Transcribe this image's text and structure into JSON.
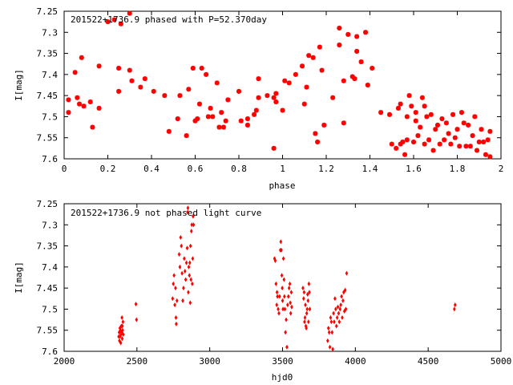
{
  "colors": {
    "series": "#ff0000",
    "axis": "#000000",
    "background": "#ffffff"
  },
  "chart_data": [
    {
      "type": "scatter",
      "title": "201522+1736.9 phased with P=52.370day",
      "xlabel": "phase",
      "ylabel": "I[mag]",
      "xlim": [
        0,
        2
      ],
      "ylim": [
        7.6,
        7.25
      ],
      "y_inverted": true,
      "grid": false,
      "marker": "star",
      "xticks": [
        0,
        0.2,
        0.4,
        0.6,
        0.8,
        1,
        1.2,
        1.4,
        1.6,
        1.8,
        2
      ],
      "xtick_labels": [
        "0",
        "0.2",
        "0.4",
        "0.6",
        "0.8",
        "1",
        "1.2",
        "1.4",
        "1.6",
        "1.8",
        "2"
      ],
      "yticks": [
        7.25,
        7.3,
        7.35,
        7.4,
        7.45,
        7.5,
        7.55,
        7.6
      ],
      "ytick_labels": [
        "7.25",
        "7.3",
        "7.35",
        "7.4",
        "7.45",
        "7.5",
        "7.55",
        "7.6"
      ],
      "points": [
        [
          0.02,
          7.46
        ],
        [
          0.02,
          7.49
        ],
        [
          0.05,
          7.395
        ],
        [
          0.06,
          7.455
        ],
        [
          0.07,
          7.47
        ],
        [
          0.08,
          7.36
        ],
        [
          0.09,
          7.475
        ],
        [
          0.12,
          7.465
        ],
        [
          0.13,
          7.525
        ],
        [
          0.16,
          7.38
        ],
        [
          0.16,
          7.48
        ],
        [
          0.2,
          7.275
        ],
        [
          0.23,
          7.27
        ],
        [
          0.25,
          7.385
        ],
        [
          0.25,
          7.44
        ],
        [
          0.26,
          7.28
        ],
        [
          0.3,
          7.255
        ],
        [
          0.3,
          7.39
        ],
        [
          0.31,
          7.415
        ],
        [
          0.35,
          7.43
        ],
        [
          0.37,
          7.41
        ],
        [
          0.41,
          7.44
        ],
        [
          0.46,
          7.45
        ],
        [
          0.48,
          7.535
        ],
        [
          0.52,
          7.505
        ],
        [
          0.53,
          7.45
        ],
        [
          0.56,
          7.545
        ],
        [
          0.57,
          7.435
        ],
        [
          0.59,
          7.385
        ],
        [
          0.6,
          7.51
        ],
        [
          0.61,
          7.505
        ],
        [
          0.62,
          7.47
        ],
        [
          0.63,
          7.385
        ],
        [
          0.65,
          7.4
        ],
        [
          0.66,
          7.5
        ],
        [
          0.67,
          7.48
        ],
        [
          0.68,
          7.5
        ],
        [
          0.7,
          7.42
        ],
        [
          0.71,
          7.525
        ],
        [
          0.72,
          7.49
        ],
        [
          0.73,
          7.525
        ],
        [
          0.74,
          7.51
        ],
        [
          0.75,
          7.46
        ],
        [
          0.8,
          7.44
        ],
        [
          0.81,
          7.51
        ],
        [
          0.84,
          7.505
        ],
        [
          0.84,
          7.52
        ],
        [
          0.87,
          7.495
        ],
        [
          0.88,
          7.485
        ],
        [
          0.89,
          7.41
        ],
        [
          0.89,
          7.455
        ],
        [
          0.93,
          7.45
        ],
        [
          0.96,
          7.455
        ],
        [
          0.96,
          7.575
        ],
        [
          0.97,
          7.445
        ],
        [
          0.97,
          7.465
        ],
        [
          1,
          7.485
        ],
        [
          1.01,
          7.415
        ],
        [
          1.03,
          7.42
        ],
        [
          1.06,
          7.4
        ],
        [
          1.09,
          7.38
        ],
        [
          1.1,
          7.47
        ],
        [
          1.11,
          7.43
        ],
        [
          1.12,
          7.355
        ],
        [
          1.14,
          7.36
        ],
        [
          1.15,
          7.54
        ],
        [
          1.16,
          7.56
        ],
        [
          1.17,
          7.335
        ],
        [
          1.18,
          7.39
        ],
        [
          1.19,
          7.52
        ],
        [
          1.23,
          7.455
        ],
        [
          1.26,
          7.33
        ],
        [
          1.26,
          7.29
        ],
        [
          1.28,
          7.415
        ],
        [
          1.28,
          7.515
        ],
        [
          1.3,
          7.305
        ],
        [
          1.32,
          7.405
        ],
        [
          1.33,
          7.41
        ],
        [
          1.34,
          7.345
        ],
        [
          1.34,
          7.31
        ],
        [
          1.36,
          7.37
        ],
        [
          1.38,
          7.3
        ],
        [
          1.39,
          7.425
        ],
        [
          1.41,
          7.385
        ],
        [
          1.45,
          7.49
        ],
        [
          1.49,
          7.495
        ],
        [
          1.5,
          7.565
        ],
        [
          1.52,
          7.575
        ],
        [
          1.53,
          7.48
        ],
        [
          1.54,
          7.47
        ],
        [
          1.54,
          7.565
        ],
        [
          1.55,
          7.56
        ],
        [
          1.56,
          7.59
        ],
        [
          1.57,
          7.555
        ],
        [
          1.57,
          7.5
        ],
        [
          1.58,
          7.45
        ],
        [
          1.59,
          7.475
        ],
        [
          1.6,
          7.56
        ],
        [
          1.61,
          7.49
        ],
        [
          1.61,
          7.51
        ],
        [
          1.62,
          7.545
        ],
        [
          1.63,
          7.525
        ],
        [
          1.64,
          7.455
        ],
        [
          1.65,
          7.565
        ],
        [
          1.65,
          7.475
        ],
        [
          1.66,
          7.5
        ],
        [
          1.67,
          7.555
        ],
        [
          1.68,
          7.495
        ],
        [
          1.69,
          7.58
        ],
        [
          1.7,
          7.53
        ],
        [
          1.71,
          7.52
        ],
        [
          1.72,
          7.565
        ],
        [
          1.73,
          7.505
        ],
        [
          1.74,
          7.555
        ],
        [
          1.75,
          7.515
        ],
        [
          1.76,
          7.54
        ],
        [
          1.77,
          7.565
        ],
        [
          1.78,
          7.495
        ],
        [
          1.79,
          7.55
        ],
        [
          1.8,
          7.53
        ],
        [
          1.81,
          7.57
        ],
        [
          1.82,
          7.49
        ],
        [
          1.83,
          7.515
        ],
        [
          1.84,
          7.57
        ],
        [
          1.85,
          7.52
        ],
        [
          1.86,
          7.57
        ],
        [
          1.87,
          7.545
        ],
        [
          1.88,
          7.5
        ],
        [
          1.89,
          7.58
        ],
        [
          1.9,
          7.56
        ],
        [
          1.91,
          7.53
        ],
        [
          1.92,
          7.56
        ],
        [
          1.93,
          7.59
        ],
        [
          1.94,
          7.555
        ],
        [
          1.95,
          7.535
        ],
        [
          1.95,
          7.595
        ]
      ]
    },
    {
      "type": "scatter",
      "title": "201522+1736.9 not phased light curve",
      "xlabel": "hjd0",
      "ylabel": "I[mag]",
      "xlim": [
        2000,
        5000
      ],
      "ylim": [
        7.6,
        7.25
      ],
      "y_inverted": true,
      "grid": false,
      "marker": "diamond",
      "xticks": [
        2000,
        2500,
        3000,
        3500,
        4000,
        4500,
        5000
      ],
      "xtick_labels": [
        "2000",
        "2500",
        "3000",
        "3500",
        "4000",
        "4500",
        "5000"
      ],
      "yticks": [
        7.25,
        7.3,
        7.35,
        7.4,
        7.45,
        7.5,
        7.55,
        7.6
      ],
      "ytick_labels": [
        "7.25",
        "7.3",
        "7.35",
        "7.4",
        "7.45",
        "7.5",
        "7.55",
        "7.6"
      ],
      "points": [
        [
          2375,
          7.565
        ],
        [
          2378,
          7.555
        ],
        [
          2380,
          7.575
        ],
        [
          2383,
          7.545
        ],
        [
          2385,
          7.565
        ],
        [
          2387,
          7.55
        ],
        [
          2389,
          7.58
        ],
        [
          2391,
          7.56
        ],
        [
          2393,
          7.54
        ],
        [
          2395,
          7.555
        ],
        [
          2397,
          7.52
        ],
        [
          2399,
          7.57
        ],
        [
          2400,
          7.54
        ],
        [
          2402,
          7.55
        ],
        [
          2404,
          7.53
        ],
        [
          2406,
          7.56
        ],
        [
          2493,
          7.488
        ],
        [
          2497,
          7.525
        ],
        [
          2745,
          7.475
        ],
        [
          2750,
          7.44
        ],
        [
          2755,
          7.42
        ],
        [
          2760,
          7.49
        ],
        [
          2765,
          7.45
        ],
        [
          2768,
          7.52
        ],
        [
          2770,
          7.535
        ],
        [
          2775,
          7.48
        ],
        [
          2790,
          7.37
        ],
        [
          2795,
          7.4
        ],
        [
          2800,
          7.33
        ],
        [
          2805,
          7.35
        ],
        [
          2810,
          7.415
        ],
        [
          2815,
          7.48
        ],
        [
          2820,
          7.45
        ],
        [
          2825,
          7.38
        ],
        [
          2830,
          7.41
        ],
        [
          2835,
          7.43
        ],
        [
          2840,
          7.39
        ],
        [
          2845,
          7.355
        ],
        [
          2848,
          7.27
        ],
        [
          2850,
          7.26
        ],
        [
          2853,
          7.46
        ],
        [
          2856,
          7.4
        ],
        [
          2860,
          7.42
        ],
        [
          2863,
          7.39
        ],
        [
          2866,
          7.485
        ],
        [
          2868,
          7.35
        ],
        [
          2871,
          7.43
        ],
        [
          2874,
          7.315
        ],
        [
          2877,
          7.3
        ],
        [
          2880,
          7.44
        ],
        [
          2883,
          7.38
        ],
        [
          2886,
          7.28
        ],
        [
          2889,
          7.3
        ],
        [
          3445,
          7.38
        ],
        [
          3450,
          7.385
        ],
        [
          3455,
          7.44
        ],
        [
          3460,
          7.49
        ],
        [
          3462,
          7.46
        ],
        [
          3465,
          7.47
        ],
        [
          3470,
          7.5
        ],
        [
          3475,
          7.51
        ],
        [
          3480,
          7.47
        ],
        [
          3485,
          7.36
        ],
        [
          3488,
          7.34
        ],
        [
          3492,
          7.36
        ],
        [
          3495,
          7.42
        ],
        [
          3498,
          7.45
        ],
        [
          3500,
          7.48
        ],
        [
          3503,
          7.5
        ],
        [
          3506,
          7.38
        ],
        [
          3510,
          7.43
        ],
        [
          3513,
          7.47
        ],
        [
          3516,
          7.5
        ],
        [
          3520,
          7.555
        ],
        [
          3525,
          7.525
        ],
        [
          3530,
          7.59
        ],
        [
          3535,
          7.49
        ],
        [
          3540,
          7.47
        ],
        [
          3545,
          7.45
        ],
        [
          3550,
          7.44
        ],
        [
          3553,
          7.485
        ],
        [
          3556,
          7.51
        ],
        [
          3560,
          7.46
        ],
        [
          3563,
          7.495
        ],
        [
          3640,
          7.45
        ],
        [
          3645,
          7.475
        ],
        [
          3648,
          7.46
        ],
        [
          3651,
          7.53
        ],
        [
          3654,
          7.52
        ],
        [
          3657,
          7.49
        ],
        [
          3660,
          7.54
        ],
        [
          3663,
          7.545
        ],
        [
          3666,
          7.51
        ],
        [
          3669,
          7.5
        ],
        [
          3672,
          7.465
        ],
        [
          3675,
          7.48
        ],
        [
          3678,
          7.53
        ],
        [
          3681,
          7.44
        ],
        [
          3684,
          7.46
        ],
        [
          3687,
          7.5
        ],
        [
          3810,
          7.575
        ],
        [
          3815,
          7.545
        ],
        [
          3820,
          7.555
        ],
        [
          3825,
          7.59
        ],
        [
          3830,
          7.52
        ],
        [
          3835,
          7.53
        ],
        [
          3840,
          7.555
        ],
        [
          3845,
          7.595
        ],
        [
          3850,
          7.51
        ],
        [
          3855,
          7.53
        ],
        [
          3860,
          7.475
        ],
        [
          3865,
          7.5
        ],
        [
          3870,
          7.54
        ],
        [
          3875,
          7.52
        ],
        [
          3880,
          7.495
        ],
        [
          3885,
          7.51
        ],
        [
          3890,
          7.53
        ],
        [
          3895,
          7.5
        ],
        [
          3900,
          7.49
        ],
        [
          3905,
          7.47
        ],
        [
          3910,
          7.52
        ],
        [
          3915,
          7.48
        ],
        [
          3920,
          7.46
        ],
        [
          3925,
          7.505
        ],
        [
          3930,
          7.455
        ],
        [
          3935,
          7.5
        ],
        [
          3940,
          7.415
        ],
        [
          4680,
          7.5
        ],
        [
          4685,
          7.49
        ]
      ]
    }
  ]
}
